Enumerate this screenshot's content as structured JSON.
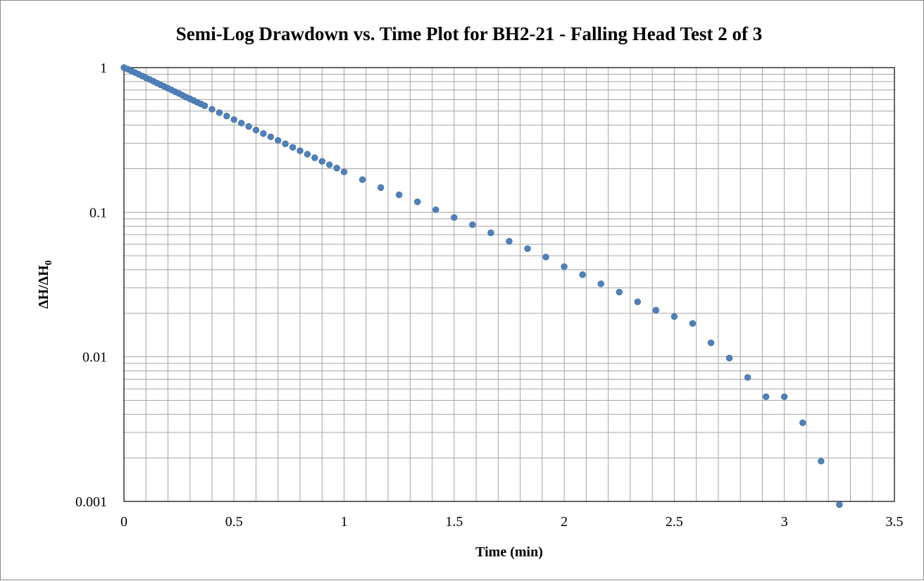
{
  "chart_data": {
    "type": "scatter",
    "title": "Semi-Log Drawdown vs. Time Plot for BH2-21 - Falling Head Test 2 of 3",
    "xlabel": "Time (min)",
    "ylabel_main": "ΔH/ΔH",
    "ylabel_sub": "0",
    "xlim": [
      0,
      3.5
    ],
    "ylim": [
      0.001,
      1
    ],
    "yscale": "log",
    "x_ticks": [
      0,
      0.5,
      1,
      1.5,
      2,
      2.5,
      3,
      3.5
    ],
    "x_tick_labels": [
      "0",
      "0.5",
      "1",
      "1.5",
      "2",
      "2.5",
      "3",
      "3.5"
    ],
    "y_ticks": [
      1,
      0.1,
      0.01,
      0.001
    ],
    "y_tick_labels": [
      "1",
      "0.1",
      "0.01",
      "0.001"
    ],
    "grid": true,
    "marker_color": "#4f81bd",
    "x": [
      0,
      0.0167,
      0.0333,
      0.05,
      0.0667,
      0.0833,
      0.1,
      0.1167,
      0.1333,
      0.15,
      0.1667,
      0.1833,
      0.2,
      0.2167,
      0.2333,
      0.25,
      0.2667,
      0.2833,
      0.3,
      0.3167,
      0.3333,
      0.35,
      0.3667,
      0.4,
      0.4333,
      0.4667,
      0.5,
      0.5333,
      0.5667,
      0.6,
      0.6333,
      0.6667,
      0.7,
      0.7333,
      0.7667,
      0.8,
      0.8333,
      0.8667,
      0.9,
      0.9333,
      0.9667,
      1,
      1.0833,
      1.1667,
      1.25,
      1.3333,
      1.4167,
      1.5,
      1.5833,
      1.6667,
      1.75,
      1.8333,
      1.9167,
      2,
      2.0833,
      2.1667,
      2.25,
      2.3333,
      2.4167,
      2.5,
      2.5833,
      2.6667,
      2.75,
      2.8333,
      2.9167,
      3,
      3.0833,
      3.1667,
      3.25
    ],
    "y": [
      1,
      0.975,
      0.95,
      0.925,
      0.9,
      0.875,
      0.85,
      0.828,
      0.805,
      0.782,
      0.76,
      0.74,
      0.72,
      0.7,
      0.68,
      0.662,
      0.643,
      0.625,
      0.608,
      0.592,
      0.575,
      0.56,
      0.545,
      0.515,
      0.488,
      0.462,
      0.437,
      0.413,
      0.392,
      0.37,
      0.35,
      0.332,
      0.314,
      0.297,
      0.281,
      0.266,
      0.252,
      0.238,
      0.225,
      0.213,
      0.202,
      0.19,
      0.168,
      0.148,
      0.132,
      0.118,
      0.104,
      0.092,
      0.082,
      0.072,
      0.063,
      0.056,
      0.049,
      0.042,
      0.037,
      0.032,
      0.028,
      0.024,
      0.021,
      0.019,
      0.017,
      0.0125,
      0.0098,
      0.0072,
      0.0053,
      0.0053,
      0.0035,
      0.0019,
      0.00095
    ]
  }
}
